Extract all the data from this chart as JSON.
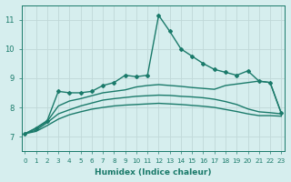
{
  "xlabel": "Humidex (Indice chaleur)",
  "background_color": "#d6eeee",
  "grid_color": "#c0d8d8",
  "line_color": "#1a7a6a",
  "xlim": [
    -0.3,
    23.3
  ],
  "ylim": [
    6.5,
    11.5
  ],
  "yticks": [
    7,
    8,
    9,
    10,
    11
  ],
  "xticks": [
    0,
    1,
    2,
    3,
    4,
    5,
    6,
    7,
    8,
    9,
    10,
    11,
    12,
    13,
    14,
    15,
    16,
    17,
    18,
    19,
    20,
    21,
    22,
    23
  ],
  "line_main_x": [
    0,
    1,
    2,
    3,
    4,
    5,
    6,
    7,
    8,
    9,
    10,
    11,
    12,
    13,
    14,
    15,
    16,
    17,
    18,
    19,
    20,
    21,
    22,
    23
  ],
  "line_main_y": [
    7.1,
    7.3,
    7.55,
    8.55,
    8.5,
    8.5,
    8.55,
    8.75,
    8.85,
    9.1,
    9.05,
    9.1,
    11.15,
    10.6,
    10.0,
    9.75,
    9.5,
    9.3,
    9.2,
    9.1,
    9.25,
    8.9,
    8.85,
    7.8
  ],
  "line2_x": [
    0,
    1,
    2,
    3,
    4,
    5,
    6,
    7,
    8,
    9,
    10,
    11,
    12,
    13,
    14,
    15,
    16,
    17,
    18,
    19,
    20,
    21,
    22,
    23
  ],
  "line2_y": [
    7.1,
    7.28,
    7.52,
    8.05,
    8.22,
    8.3,
    8.4,
    8.5,
    8.55,
    8.6,
    8.7,
    8.75,
    8.78,
    8.75,
    8.72,
    8.68,
    8.65,
    8.62,
    8.75,
    8.8,
    8.85,
    8.9,
    8.85,
    7.8
  ],
  "line3_x": [
    0,
    1,
    2,
    3,
    4,
    5,
    6,
    7,
    8,
    9,
    10,
    11,
    12,
    13,
    14,
    15,
    16,
    17,
    18,
    19,
    20,
    21,
    22,
    23
  ],
  "line3_y": [
    7.1,
    7.22,
    7.48,
    7.78,
    7.92,
    8.05,
    8.15,
    8.25,
    8.3,
    8.34,
    8.38,
    8.4,
    8.42,
    8.41,
    8.38,
    8.36,
    8.33,
    8.28,
    8.2,
    8.1,
    7.95,
    7.85,
    7.82,
    7.78
  ],
  "line4_x": [
    0,
    1,
    2,
    3,
    4,
    5,
    6,
    7,
    8,
    9,
    10,
    11,
    12,
    13,
    14,
    15,
    16,
    17,
    18,
    19,
    20,
    21,
    22,
    23
  ],
  "line4_y": [
    7.1,
    7.18,
    7.38,
    7.6,
    7.75,
    7.85,
    7.94,
    8.0,
    8.05,
    8.08,
    8.1,
    8.12,
    8.14,
    8.12,
    8.1,
    8.07,
    8.04,
    8.0,
    7.93,
    7.86,
    7.78,
    7.72,
    7.72,
    7.7
  ]
}
